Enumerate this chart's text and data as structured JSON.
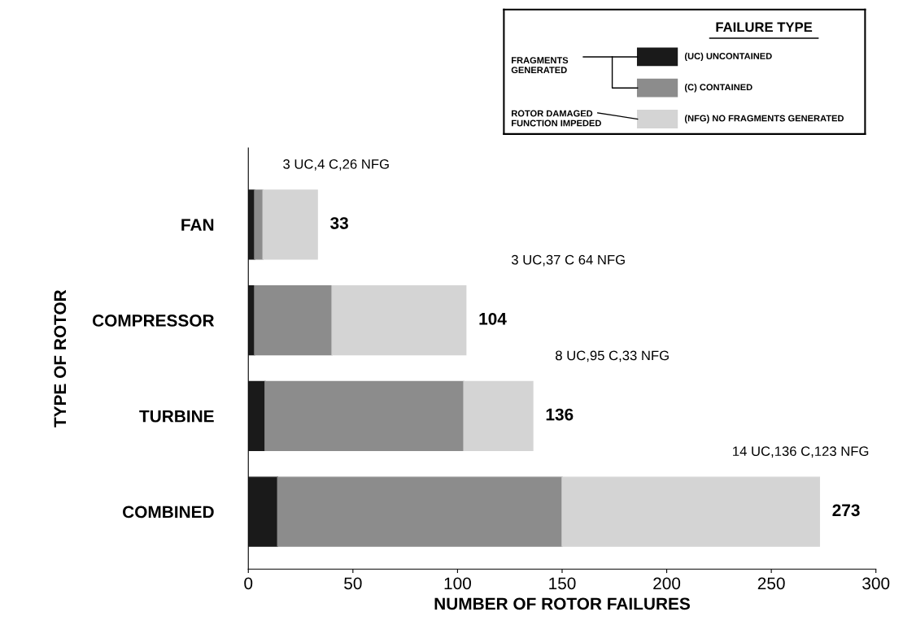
{
  "chart_data": {
    "type": "bar",
    "orientation": "horizontal",
    "stacked": true,
    "categories": [
      "FAN",
      "COMPRESSOR",
      "TURBINE",
      "COMBINED"
    ],
    "xlabel": "NUMBER OF ROTOR FAILURES",
    "ylabel": "TYPE OF ROTOR",
    "legend_title": "FAILURE TYPE",
    "legend": "top right",
    "series": [
      {
        "name": "(UC) UNCONTAINED",
        "color": "#1a1a1a",
        "values": [
          3,
          3,
          8,
          14
        ]
      },
      {
        "name": "(C) CONTAINED",
        "color": "#8c8c8c",
        "values": [
          4,
          37,
          95,
          136
        ]
      },
      {
        "name": "(NFG) NO FRAGMENTS GENERATED",
        "color": "#d4d4d4",
        "values": [
          26,
          64,
          33,
          123
        ]
      }
    ],
    "totals": [
      "33",
      "104",
      "136",
      "273"
    ],
    "xlim": [
      0,
      300
    ],
    "xticks": [
      0,
      50,
      100,
      150,
      200,
      250,
      300
    ],
    "annotations": [
      "3 UC,4 C,26 NFG",
      "3 UC,37 C 64 NFG",
      "8 UC,95 C,33 NFG",
      "14 UC,136 C,123 NFG",
      "FRAGMENTS GENERATED",
      "ROTOR DAMAGED FUNCTION IMPEDED"
    ]
  }
}
